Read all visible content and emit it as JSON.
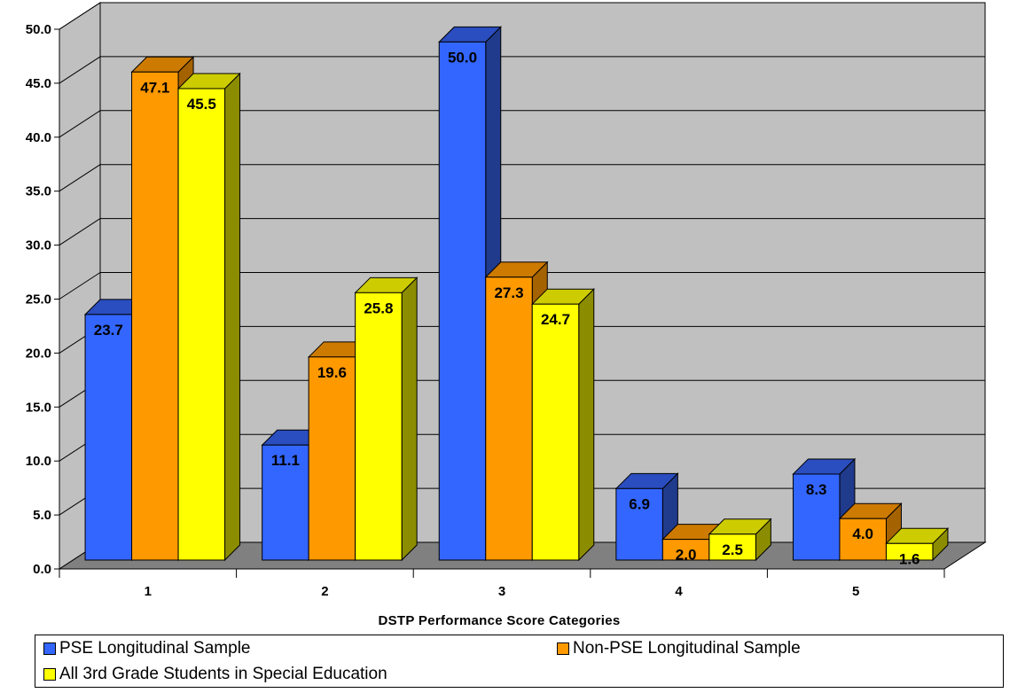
{
  "chart_data": {
    "type": "bar",
    "title": "",
    "xlabel": "DSTP Performance Score Categories",
    "ylabel": "",
    "categories": [
      "1",
      "2",
      "3",
      "4",
      "5"
    ],
    "ylim": [
      0,
      50
    ],
    "yticks": [
      "0.0",
      "5.0",
      "10.0",
      "15.0",
      "20.0",
      "25.0",
      "30.0",
      "35.0",
      "40.0",
      "45.0",
      "50.0"
    ],
    "grid": true,
    "legend_position": "bottom",
    "style": "3d-clustered-column",
    "series": [
      {
        "name": "PSE Longitudinal Sample",
        "values": [
          23.7,
          11.1,
          50.0,
          6.9,
          8.3
        ],
        "labels": [
          "23.7",
          "11.1",
          "50.0",
          "6.9",
          "8.3"
        ],
        "color": "#3366FF"
      },
      {
        "name": "Non-PSE Longitudinal Sample",
        "values": [
          47.1,
          19.6,
          27.3,
          2.0,
          4.0
        ],
        "labels": [
          "47.1",
          "19.6",
          "27.3",
          "2.0",
          "4.0"
        ],
        "color": "#FF9900"
      },
      {
        "name": "All 3rd Grade Students in Special Education",
        "values": [
          45.5,
          25.8,
          24.7,
          2.5,
          1.6
        ],
        "labels": [
          "45.5",
          "25.8",
          "24.7",
          "2.5",
          "1.6"
        ],
        "color": "#FFFF00"
      }
    ]
  },
  "colors": {
    "wall": "#C0C0C0",
    "floor": "#808080",
    "series_side": [
      "#203A8C",
      "#A56200",
      "#8C8C00"
    ],
    "series_top": [
      "#2A4DBF",
      "#CC7A00",
      "#CCCC00"
    ]
  }
}
